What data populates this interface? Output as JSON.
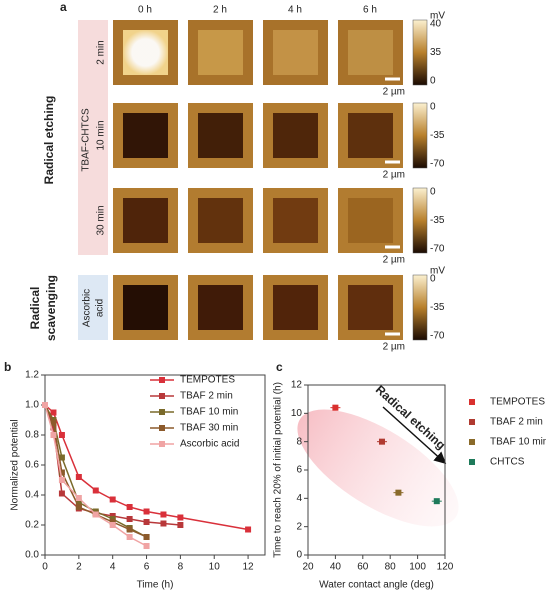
{
  "panel_a": {
    "label": "a",
    "columns": [
      "0 h",
      "2 h",
      "4 h",
      "6 h"
    ],
    "etching_label": "Radical etching",
    "condition_label": "TBAF-CHTCS",
    "rows": [
      "2 min",
      "10 min",
      "30 min"
    ],
    "scavenging_label": [
      "Radical",
      "scavenging"
    ],
    "scavenger_label": [
      "Ascorbic",
      "acid"
    ],
    "colorbars": [
      {
        "unit": "mV",
        "ticks": [
          40,
          35,
          0
        ]
      },
      {
        "ticks": [
          0,
          -35,
          -70
        ]
      },
      {
        "ticks": [
          0,
          -35,
          -70
        ]
      },
      {
        "unit": "mV",
        "ticks": [
          0,
          -35,
          -70
        ]
      }
    ],
    "scalebar": "2 µm"
  },
  "panel_labels": [
    "b",
    "c"
  ],
  "chart_data": [
    {
      "type": "line",
      "xlabel": "Time (h)",
      "ylabel": "Normalized potential",
      "xlim": [
        0,
        13
      ],
      "xticks": [
        0,
        2,
        4,
        6,
        8,
        10,
        12
      ],
      "ylim": [
        0,
        1.2
      ],
      "yticks": [
        {
          "value": 0,
          "label": "0.0"
        },
        {
          "value": 0.2,
          "label": "0.2"
        },
        {
          "value": 0.4,
          "label": "0.4"
        },
        {
          "value": 0.6,
          "label": "0.6"
        },
        {
          "value": 0.8,
          "label": "0.8"
        },
        {
          "value": 1.0,
          "label": "1.0"
        },
        {
          "value": 1.2,
          "label": "1.2"
        }
      ],
      "series": [
        {
          "name": "TEMPOTES",
          "color": "#d9303a",
          "x": [
            0,
            0.5,
            1,
            2,
            3,
            4,
            5,
            6,
            7,
            8,
            12
          ],
          "values": [
            1.0,
            0.95,
            0.8,
            0.52,
            0.43,
            0.37,
            0.32,
            0.29,
            0.27,
            0.25,
            0.17
          ]
        },
        {
          "name": "TBAF 2 min",
          "color": "#b8383a",
          "x": [
            0,
            0.5,
            1,
            2,
            3,
            4,
            5,
            6,
            7,
            8
          ],
          "values": [
            1.0,
            0.85,
            0.41,
            0.31,
            0.28,
            0.26,
            0.24,
            0.22,
            0.21,
            0.2
          ]
        },
        {
          "name": "TBAF 10 min",
          "color": "#7a6a2a",
          "x": [
            0,
            0.5,
            1,
            2,
            3,
            4,
            5,
            6
          ],
          "values": [
            1.0,
            0.9,
            0.65,
            0.35,
            0.29,
            0.24,
            0.18,
            0.12
          ]
        },
        {
          "name": "TBAF 30 min",
          "color": "#8c5a2b",
          "x": [
            0,
            0.5,
            1,
            2,
            3,
            4,
            5,
            6
          ],
          "values": [
            1.0,
            0.88,
            0.55,
            0.32,
            0.27,
            0.22,
            0.17,
            0.12
          ]
        },
        {
          "name": "Ascorbic acid",
          "color": "#f0a4a4",
          "x": [
            0,
            0.5,
            1,
            2,
            3,
            4,
            5,
            6
          ],
          "values": [
            1.0,
            0.8,
            0.5,
            0.38,
            0.27,
            0.2,
            0.12,
            0.06
          ]
        }
      ]
    },
    {
      "type": "scatter",
      "xlabel": "Water contact angle (deg)",
      "ylabel": "Time to reach 20% of initial potential (h)",
      "annotation": "Radical etching",
      "xlim": [
        20,
        120
      ],
      "xticks": [
        20,
        40,
        60,
        80,
        100,
        120
      ],
      "ylim": [
        0,
        12
      ],
      "yticks": [
        0,
        2,
        4,
        6,
        8,
        10,
        12
      ],
      "series": [
        {
          "name": "TEMPOTES",
          "color": "#d9302e",
          "x": [
            40
          ],
          "values": [
            10.4
          ]
        },
        {
          "name": "TBAF 2 min",
          "color": "#b03a30",
          "x": [
            74
          ],
          "values": [
            8.0
          ]
        },
        {
          "name": "TBAF 10 min",
          "color": "#8a6a2a",
          "x": [
            86
          ],
          "values": [
            4.4
          ]
        },
        {
          "name": "CHTCS",
          "color": "#1e7a5a",
          "x": [
            114
          ],
          "values": [
            3.8
          ]
        }
      ]
    }
  ]
}
